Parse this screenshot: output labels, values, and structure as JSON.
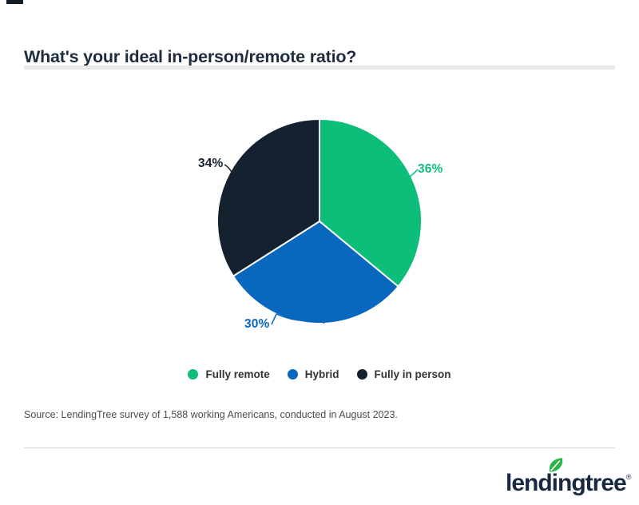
{
  "header": {
    "title": "What's your ideal in-person/remote ratio?"
  },
  "chart_data": {
    "type": "pie",
    "title": "What's your ideal in-person/remote ratio?",
    "legend_position": "bottom",
    "start_angle": "12 o'clock, clockwise",
    "slices": [
      {
        "label": "Fully remote",
        "value": 36,
        "display": "36%",
        "color": "#0dbe7a"
      },
      {
        "label": "Hybrid",
        "value": 30,
        "display": "30%",
        "color": "#0a67be"
      },
      {
        "label": "Fully in person",
        "value": 34,
        "display": "34%",
        "color": "#14212f"
      }
    ]
  },
  "source": {
    "text": "Source: LendingTree survey of 1,588 working Americans, conducted in August 2023."
  },
  "footer": {
    "logo_text": "lendingtree",
    "registered_mark": "®",
    "logo_color": "#1a2942",
    "leaf_color": "#2cb34a"
  }
}
